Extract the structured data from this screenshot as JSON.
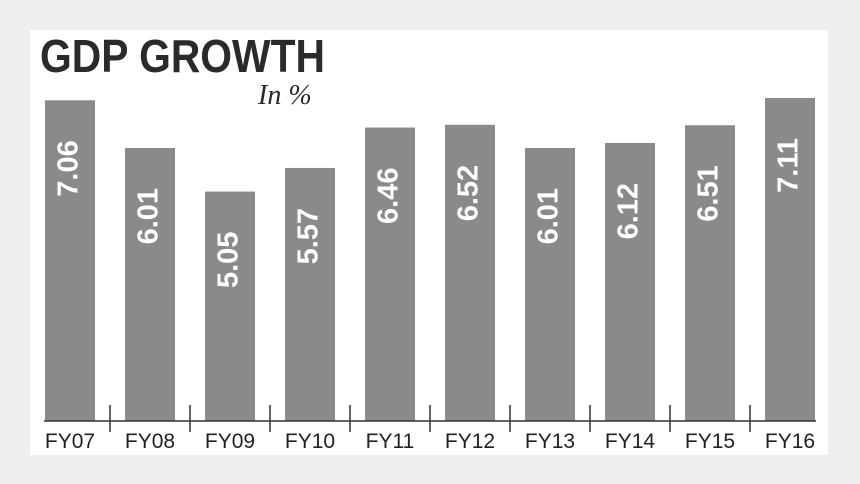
{
  "chart_data": {
    "type": "bar",
    "title": "GDP GROWTH",
    "subtitle": "In %",
    "categories": [
      "FY07",
      "FY08",
      "FY09",
      "FY10",
      "FY11",
      "FY12",
      "FY13",
      "FY14",
      "FY15",
      "FY16"
    ],
    "values": [
      7.06,
      6.01,
      5.05,
      5.57,
      6.46,
      6.52,
      6.01,
      6.12,
      6.51,
      7.11
    ],
    "color": "#8a8a8a"
  }
}
